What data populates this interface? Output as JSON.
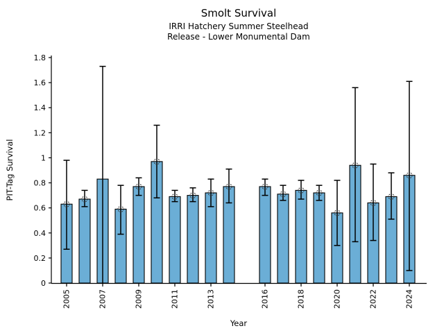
{
  "chart_data": {
    "type": "bar",
    "title": "Smolt Survival",
    "subtitle_line1": "IRRI Hatchery Summer Steelhead",
    "subtitle_line2": "Release - Lower Monumental Dam",
    "xlabel": "Year",
    "ylabel": "PIT-Tag Survival",
    "ylim": [
      0,
      1.8
    ],
    "xlim_years": [
      2004,
      2025
    ],
    "grid": false,
    "legend": false,
    "bar_color": "#6BAED6",
    "bar_edge_color": "#000000",
    "error_bar_color": "#000000",
    "marker_style": "open-circle",
    "ytick_values": [
      0,
      0.2,
      0.4,
      0.6,
      0.8,
      1.0,
      1.2,
      1.4,
      1.6,
      1.8
    ],
    "ytick_labels": [
      "0",
      "0.2",
      "0.4",
      "0.6",
      "0.8",
      "1",
      "1.2",
      "1.4",
      "1.6",
      "1.8"
    ],
    "xtick_years": [
      2005,
      2007,
      2009,
      2011,
      2013,
      2016,
      2018,
      2020,
      2022,
      2024
    ],
    "xtick_labels": [
      "2005",
      "2007",
      "2009",
      "2011",
      "2013",
      "2016",
      "2018",
      "2020",
      "2022",
      "2024"
    ],
    "missing_years": [
      2015
    ],
    "bars": [
      {
        "year": 2005,
        "value": 0.63,
        "ci_low": 0.27,
        "ci_high": 0.98,
        "marker_visible": true,
        "lower_cap_visible": true
      },
      {
        "year": 2006,
        "value": 0.67,
        "ci_low": 0.61,
        "ci_high": 0.74,
        "marker_visible": true,
        "lower_cap_visible": true
      },
      {
        "year": 2007,
        "value": 0.83,
        "ci_low": 0.0,
        "ci_high": 1.73,
        "marker_visible": false,
        "lower_cap_visible": false
      },
      {
        "year": 2008,
        "value": 0.59,
        "ci_low": 0.39,
        "ci_high": 0.78,
        "marker_visible": true,
        "lower_cap_visible": true
      },
      {
        "year": 2009,
        "value": 0.77,
        "ci_low": 0.7,
        "ci_high": 0.84,
        "marker_visible": true,
        "lower_cap_visible": true
      },
      {
        "year": 2010,
        "value": 0.97,
        "ci_low": 0.68,
        "ci_high": 1.26,
        "marker_visible": true,
        "lower_cap_visible": true
      },
      {
        "year": 2011,
        "value": 0.69,
        "ci_low": 0.65,
        "ci_high": 0.74,
        "marker_visible": true,
        "lower_cap_visible": true
      },
      {
        "year": 2012,
        "value": 0.7,
        "ci_low": 0.65,
        "ci_high": 0.76,
        "marker_visible": true,
        "lower_cap_visible": true
      },
      {
        "year": 2013,
        "value": 0.72,
        "ci_low": 0.61,
        "ci_high": 0.83,
        "marker_visible": true,
        "lower_cap_visible": true
      },
      {
        "year": 2014,
        "value": 0.77,
        "ci_low": 0.64,
        "ci_high": 0.91,
        "marker_visible": true,
        "lower_cap_visible": true
      },
      {
        "year": 2016,
        "value": 0.77,
        "ci_low": 0.7,
        "ci_high": 0.83,
        "marker_visible": true,
        "lower_cap_visible": true
      },
      {
        "year": 2017,
        "value": 0.71,
        "ci_low": 0.66,
        "ci_high": 0.78,
        "marker_visible": true,
        "lower_cap_visible": true
      },
      {
        "year": 2018,
        "value": 0.74,
        "ci_low": 0.67,
        "ci_high": 0.82,
        "marker_visible": true,
        "lower_cap_visible": true
      },
      {
        "year": 2019,
        "value": 0.72,
        "ci_low": 0.66,
        "ci_high": 0.78,
        "marker_visible": true,
        "lower_cap_visible": true
      },
      {
        "year": 2020,
        "value": 0.56,
        "ci_low": 0.3,
        "ci_high": 0.82,
        "marker_visible": true,
        "lower_cap_visible": true
      },
      {
        "year": 2021,
        "value": 0.94,
        "ci_low": 0.33,
        "ci_high": 1.56,
        "marker_visible": true,
        "lower_cap_visible": true
      },
      {
        "year": 2022,
        "value": 0.64,
        "ci_low": 0.34,
        "ci_high": 0.95,
        "marker_visible": true,
        "lower_cap_visible": true
      },
      {
        "year": 2023,
        "value": 0.69,
        "ci_low": 0.51,
        "ci_high": 0.88,
        "marker_visible": true,
        "lower_cap_visible": true
      },
      {
        "year": 2024,
        "value": 0.86,
        "ci_low": 0.1,
        "ci_high": 1.61,
        "marker_visible": true,
        "lower_cap_visible": true
      }
    ]
  }
}
